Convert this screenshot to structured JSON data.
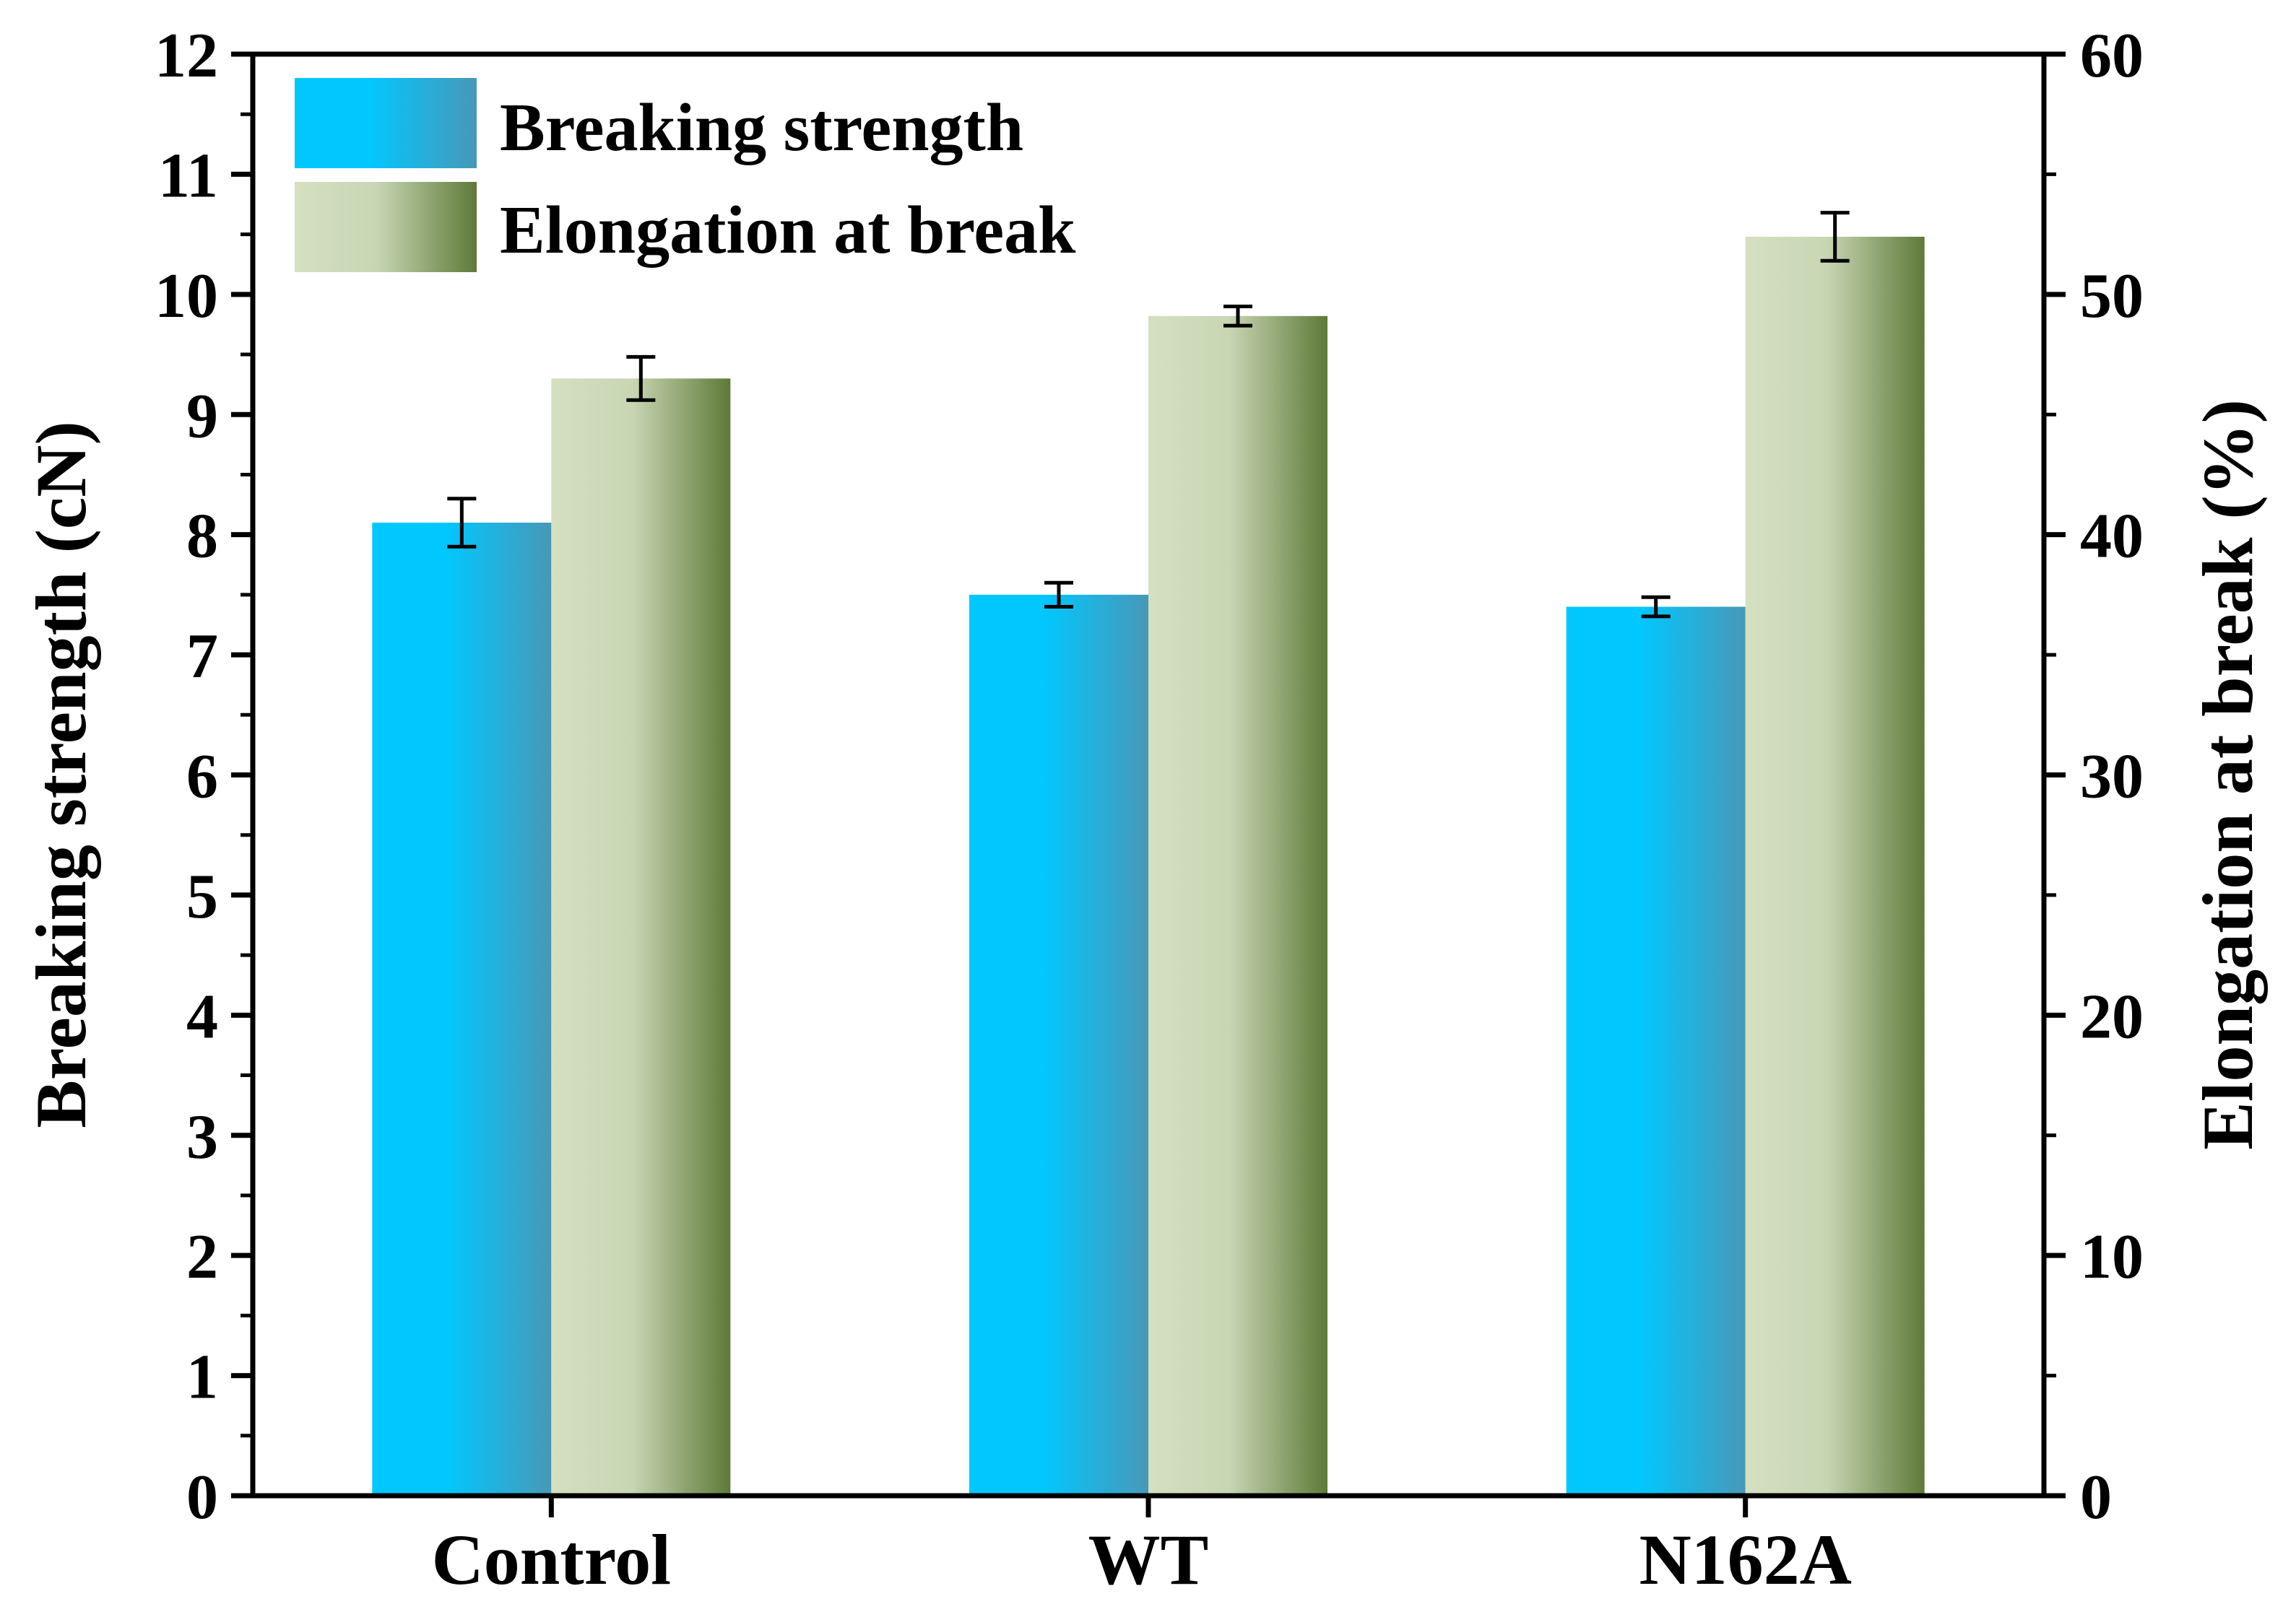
{
  "chart_data": {
    "type": "bar",
    "categories": [
      "Control",
      "WT",
      "N162A"
    ],
    "series": [
      {
        "name": "Breaking strength",
        "axis": "left",
        "values": [
          8.1,
          7.5,
          7.4
        ],
        "errors": [
          0.2,
          0.1,
          0.08
        ],
        "colors": [
          "#00c8ff",
          "#4898b8"
        ]
      },
      {
        "name": "Elongation at break",
        "axis": "right",
        "values": [
          46.5,
          49.1,
          52.4
        ],
        "errors": [
          0.9,
          0.4,
          1.0
        ],
        "colors": [
          "#d4e0c0",
          "#5e7a38"
        ]
      }
    ],
    "ylabel": "Breaking strength (cN)",
    "y2label": "Elongation at break (%)",
    "xlabel": "",
    "ylim": [
      0,
      12
    ],
    "y2lim": [
      0,
      60
    ],
    "yticks": [
      "0",
      "1",
      "2",
      "3",
      "4",
      "5",
      "6",
      "7",
      "8",
      "9",
      "10",
      "11",
      "12"
    ],
    "y2ticks": [
      "0",
      "10",
      "20",
      "30",
      "40",
      "50",
      "60"
    ],
    "legend_position": "top-left"
  }
}
